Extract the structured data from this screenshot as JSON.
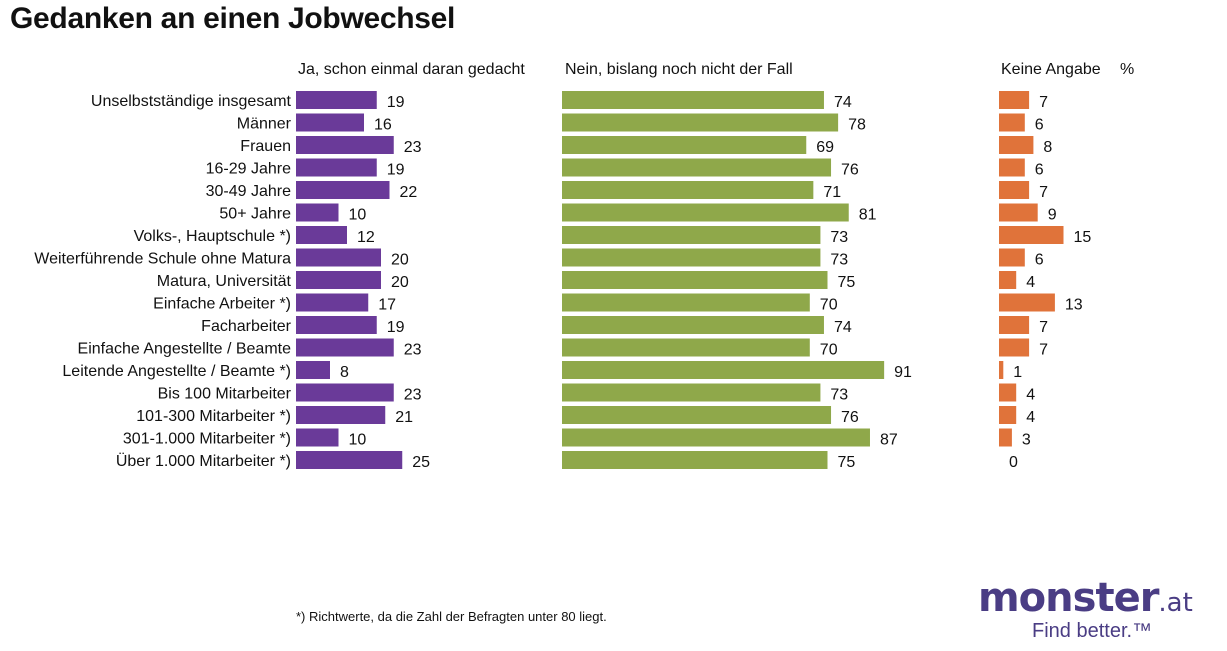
{
  "title": "Gedanken an einen Jobwechsel",
  "footnote": "*) Richtwerte, da die Zahl der Befragten unter 80 liegt.",
  "logo": {
    "word": "monster",
    "suffix": ".at",
    "tagline": "Find better.™"
  },
  "chart_data": {
    "type": "bar",
    "orientation": "horizontal",
    "unit_label": "%",
    "categories": [
      "Unselbstständige insgesamt",
      "Männer",
      "Frauen",
      "16-29 Jahre",
      "30-49 Jahre",
      "50+ Jahre",
      "Volks-, Hauptschule *)",
      "Weiterführende Schule ohne Matura",
      "Matura, Universität",
      "Einfache Arbeiter *)",
      "Facharbeiter",
      "Einfache Angestellte / Beamte",
      "Leitende Angestellte / Beamte *)",
      "Bis 100 Mitarbeiter",
      "101-300 Mitarbeiter *)",
      "301-1.000 Mitarbeiter *)",
      "Über 1.000 Mitarbeiter *)"
    ],
    "groups": [
      [
        0
      ],
      [
        1,
        2
      ],
      [
        3,
        4,
        5
      ],
      [
        6,
        7,
        8
      ],
      [
        9,
        10,
        11,
        12
      ],
      [
        13,
        14,
        15,
        16
      ]
    ],
    "series": [
      {
        "name": "Ja, schon einmal daran gedacht",
        "color": "#6a3a99",
        "values": [
          19,
          16,
          23,
          19,
          22,
          10,
          12,
          20,
          20,
          17,
          19,
          23,
          8,
          23,
          21,
          10,
          25
        ]
      },
      {
        "name": "Nein, bislang noch nicht der Fall",
        "color": "#8fa84a",
        "values": [
          74,
          78,
          69,
          76,
          71,
          81,
          73,
          73,
          75,
          70,
          74,
          70,
          91,
          73,
          76,
          87,
          75
        ]
      },
      {
        "name": "Keine Angabe",
        "color": "#e0733a",
        "values": [
          7,
          6,
          8,
          6,
          7,
          9,
          15,
          6,
          4,
          13,
          7,
          7,
          1,
          4,
          4,
          3,
          0
        ]
      }
    ]
  }
}
